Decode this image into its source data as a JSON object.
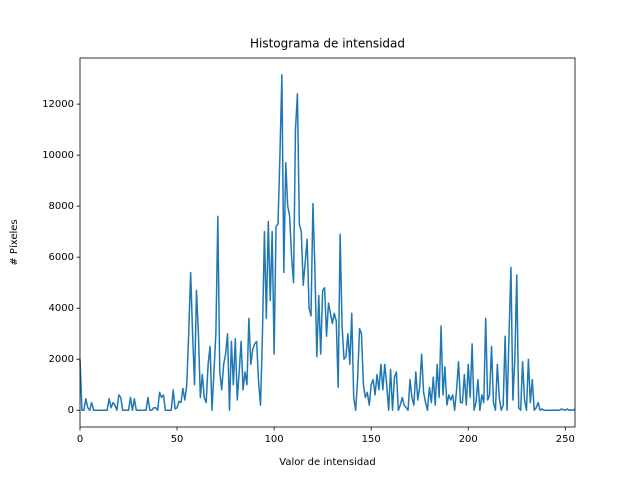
{
  "chart_data": {
    "type": "line",
    "title": "Histograma de intensidad",
    "xlabel": "Valor de intensidad",
    "ylabel": "# Píxeles",
    "color": "#1f77b4",
    "x": [
      0,
      1,
      2,
      3,
      4,
      5,
      6,
      7,
      8,
      9,
      10,
      11,
      12,
      13,
      14,
      15,
      16,
      17,
      18,
      19,
      20,
      21,
      22,
      23,
      24,
      25,
      26,
      27,
      28,
      29,
      30,
      31,
      32,
      33,
      34,
      35,
      36,
      37,
      38,
      39,
      40,
      41,
      42,
      43,
      44,
      45,
      46,
      47,
      48,
      49,
      50,
      51,
      52,
      53,
      54,
      55,
      56,
      57,
      58,
      59,
      60,
      61,
      62,
      63,
      64,
      65,
      66,
      67,
      68,
      69,
      70,
      71,
      72,
      73,
      74,
      75,
      76,
      77,
      78,
      79,
      80,
      81,
      82,
      83,
      84,
      85,
      86,
      87,
      88,
      89,
      90,
      91,
      92,
      93,
      94,
      95,
      96,
      97,
      98,
      99,
      100,
      101,
      102,
      103,
      104,
      105,
      106,
      107,
      108,
      109,
      110,
      111,
      112,
      113,
      114,
      115,
      116,
      117,
      118,
      119,
      120,
      121,
      122,
      123,
      124,
      125,
      126,
      127,
      128,
      129,
      130,
      131,
      132,
      133,
      134,
      135,
      136,
      137,
      138,
      139,
      140,
      141,
      142,
      143,
      144,
      145,
      146,
      147,
      148,
      149,
      150,
      151,
      152,
      153,
      154,
      155,
      156,
      157,
      158,
      159,
      160,
      161,
      162,
      163,
      164,
      165,
      166,
      167,
      168,
      169,
      170,
      171,
      172,
      173,
      174,
      175,
      176,
      177,
      178,
      179,
      180,
      181,
      182,
      183,
      184,
      185,
      186,
      187,
      188,
      189,
      190,
      191,
      192,
      193,
      194,
      195,
      196,
      197,
      198,
      199,
      200,
      201,
      202,
      203,
      204,
      205,
      206,
      207,
      208,
      209,
      210,
      211,
      212,
      213,
      214,
      215,
      216,
      217,
      218,
      219,
      220,
      221,
      222,
      223,
      224,
      225,
      226,
      227,
      228,
      229,
      230,
      231,
      232,
      233,
      234,
      235,
      236,
      237,
      238,
      239,
      240,
      241,
      242,
      243,
      244,
      245,
      246,
      247,
      248,
      249,
      250,
      251,
      252,
      253,
      254,
      255
    ],
    "values": [
      2000,
      0,
      0,
      450,
      100,
      0,
      300,
      0,
      0,
      0,
      0,
      0,
      0,
      0,
      0,
      450,
      100,
      300,
      200,
      0,
      600,
      500,
      0,
      0,
      0,
      0,
      500,
      0,
      450,
      0,
      0,
      0,
      0,
      0,
      0,
      500,
      0,
      0,
      100,
      100,
      0,
      700,
      500,
      600,
      0,
      0,
      0,
      0,
      800,
      50,
      100,
      350,
      300,
      850,
      400,
      1000,
      3000,
      5400,
      3000,
      1000,
      4700,
      3000,
      500,
      1400,
      500,
      300,
      1800,
      2500,
      0,
      1500,
      3000,
      7600,
      1500,
      800,
      1800,
      2200,
      3000,
      0,
      2700,
      1000,
      2800,
      400,
      1500,
      2700,
      800,
      1500,
      1000,
      3600,
      1800,
      2400,
      2600,
      2700,
      1100,
      200,
      3000,
      7000,
      3600,
      7400,
      4300,
      7000,
      2200,
      7200,
      7300,
      10000,
      13150,
      5400,
      9700,
      8000,
      7600,
      6000,
      5000,
      11000,
      12400,
      7300,
      7000,
      4900,
      5800,
      6700,
      4000,
      3700,
      8100,
      5600,
      2100,
      4500,
      2200,
      4700,
      4800,
      2900,
      4200,
      3800,
      3400,
      3800,
      3500,
      900,
      6900,
      3300,
      2000,
      2100,
      3000,
      1800,
      3800,
      500,
      0,
      1200,
      3200,
      3000,
      1000,
      500,
      700,
      200,
      1000,
      1200,
      600,
      1400,
      800,
      1800,
      800,
      1800,
      1000,
      0,
      1600,
      0,
      1300,
      1500,
      0,
      200,
      500,
      200,
      100,
      0,
      1200,
      500,
      200,
      1500,
      400,
      900,
      2200,
      700,
      300,
      0,
      900,
      300,
      1300,
      200,
      1800,
      500,
      3300,
      600,
      1700,
      200,
      600,
      400,
      600,
      0,
      800,
      1900,
      300,
      300,
      1400,
      200,
      1800,
      500,
      2600,
      0,
      300,
      1200,
      0,
      600,
      300,
      3600,
      400,
      600,
      2500,
      300,
      0,
      1800,
      500,
      0,
      200,
      2900,
      0,
      2900,
      5600,
      400,
      2000,
      5300,
      100,
      0,
      1900,
      400,
      0,
      2000,
      300,
      1200,
      0,
      100,
      300,
      0,
      50,
      0,
      0,
      0,
      0,
      0,
      0,
      0,
      0,
      0,
      50,
      20,
      0,
      50,
      0,
      10,
      0,
      50
    ],
    "xlim": [
      0,
      255
    ],
    "ylim": [
      -657,
      13807
    ],
    "xticks": [
      0,
      50,
      100,
      150,
      200,
      250
    ],
    "yticks": [
      0,
      2000,
      4000,
      6000,
      8000,
      10000,
      12000
    ]
  }
}
